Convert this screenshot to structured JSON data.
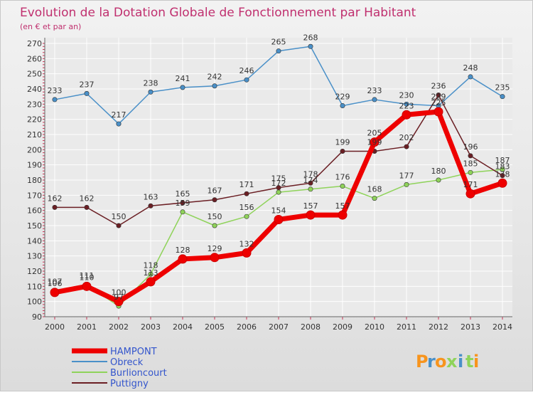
{
  "chart_data": {
    "type": "line",
    "title": "Evolution de la Dotation Globale de Fonctionnement par Habitant",
    "subtitle": "(en € et par an)",
    "x": [
      "2000",
      "2001",
      "2002",
      "2003",
      "2004",
      "2005",
      "2006",
      "2007",
      "2008",
      "2009",
      "2010",
      "2011",
      "2012",
      "2013",
      "2014"
    ],
    "ylim": [
      90,
      270
    ],
    "yticks": [
      90,
      100,
      110,
      120,
      130,
      140,
      150,
      160,
      170,
      180,
      190,
      200,
      210,
      220,
      230,
      240,
      250,
      260,
      270
    ],
    "grid": true,
    "legend_position": "bottom-left",
    "series": [
      {
        "name": "Obreck",
        "color": "#4a90c8",
        "values": [
          233,
          237,
          217,
          238,
          241,
          242,
          246,
          265,
          268,
          229,
          233,
          230,
          229,
          248,
          235
        ],
        "labels": [
          "233",
          "237",
          "217",
          "238",
          "241",
          "242",
          "246",
          "265",
          "268",
          "229",
          "233",
          "230",
          "229",
          "248",
          "235"
        ]
      },
      {
        "name": "Burlioncourt",
        "color": "#8fd35a",
        "values": [
          107,
          111,
          97,
          118,
          159,
          150,
          156,
          172,
          174,
          176,
          168,
          177,
          180,
          185,
          187
        ],
        "labels": [
          "107",
          "111",
          "97",
          "118",
          "159",
          "150",
          "156",
          "172",
          "174",
          "176",
          "168",
          "177",
          "180",
          "185",
          "187"
        ]
      },
      {
        "name": "Puttigny",
        "color": "#6b1f24",
        "values": [
          162,
          162,
          150,
          163,
          165,
          167,
          171,
          175,
          178,
          199,
          199,
          202,
          236,
          196,
          183
        ],
        "labels": [
          "162",
          "162",
          "150",
          "163",
          "165",
          "167",
          "171",
          "175",
          "178",
          "199",
          "199",
          "202",
          "236",
          "196",
          "183"
        ]
      },
      {
        "name": "HAMPONT",
        "color": "#ee0000",
        "values": [
          106,
          110,
          100,
          113,
          128,
          129,
          132,
          154,
          157,
          157,
          205,
          223,
          225,
          171,
          178
        ],
        "labels": [
          "106",
          "110",
          "100",
          "113",
          "128",
          "129",
          "132",
          "154",
          "157",
          "157",
          "205",
          "223",
          "225",
          "171",
          "178"
        ]
      }
    ],
    "legend": [
      "HAMPONT",
      "Obreck",
      "Burlioncourt",
      "Puttigny"
    ]
  },
  "brand": {
    "letters": [
      "P",
      "r",
      "o",
      "x",
      "i",
      "t",
      "i"
    ],
    "colors": [
      "#f7941d",
      "#4a90c8",
      "#f7941d",
      "#8fd35a",
      "#4a90c8",
      "#8fd35a",
      "#f7941d"
    ]
  }
}
